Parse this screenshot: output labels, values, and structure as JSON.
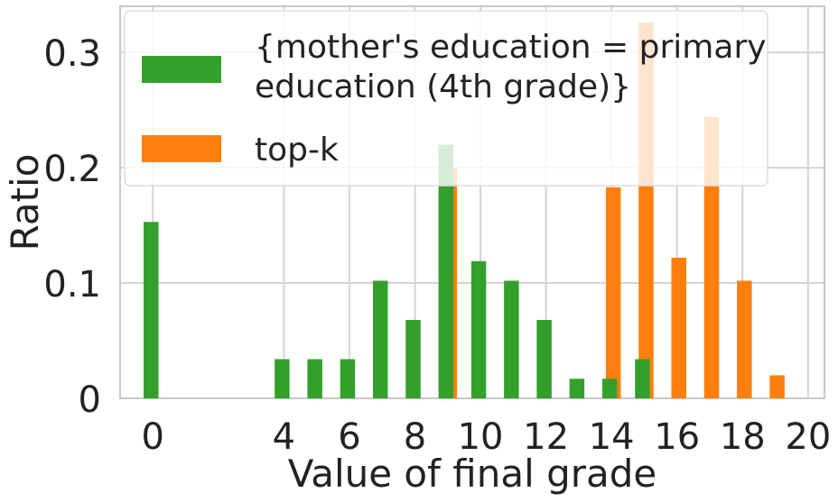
{
  "chart_data": {
    "type": "bar",
    "title": "",
    "xlabel": "Value of final grade",
    "ylabel": "Ratio",
    "xlim": [
      -1,
      20.5
    ],
    "ylim": [
      0,
      0.34
    ],
    "xticks": [
      0,
      4,
      6,
      8,
      10,
      12,
      14,
      16,
      18,
      20
    ],
    "yticks": [
      0,
      0.1,
      0.2,
      0.3
    ],
    "ytick_labels": [
      "0",
      "0.1",
      "0.2",
      "0.3"
    ],
    "grid": true,
    "legend_position": "top",
    "series": [
      {
        "name": "{mother's education = primary education (4th grade)}",
        "color": "#33a02c",
        "x": [
          0,
          4,
          5,
          6,
          7,
          8,
          9,
          10,
          11,
          12,
          13,
          14,
          15
        ],
        "values": [
          0.153,
          0.034,
          0.034,
          0.034,
          0.102,
          0.068,
          0.22,
          0.119,
          0.102,
          0.068,
          0.017,
          0.017,
          0.034
        ]
      },
      {
        "name": "top-k",
        "color": "#ff7f0e",
        "x": [
          9,
          14,
          15,
          16,
          17,
          18,
          19
        ],
        "values": [
          0.2,
          0.183,
          0.326,
          0.122,
          0.244,
          0.102,
          0.02
        ]
      }
    ]
  }
}
